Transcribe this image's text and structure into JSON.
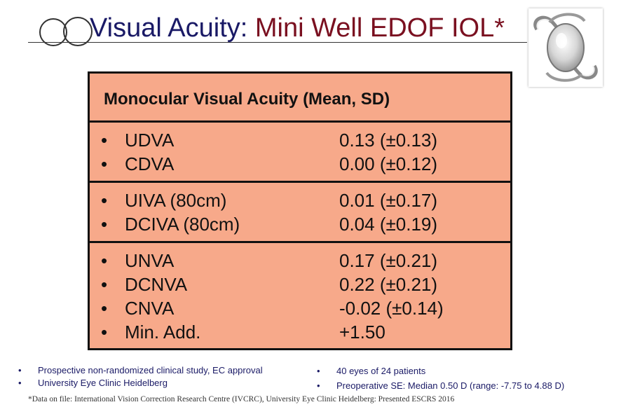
{
  "title": {
    "part1": "Visual Acuity: ",
    "part2": "Mini Well EDOF IOL*"
  },
  "table": {
    "header": "Monocular Visual Acuity (Mean, SD)",
    "bullet": "•",
    "sections": [
      [
        {
          "label": "UDVA",
          "value": "0.13 (±0.13)"
        },
        {
          "label": "CDVA",
          "value": "0.00 (±0.12)"
        }
      ],
      [
        {
          "label": "UIVA (80cm)",
          "value": "0.01 (±0.17)"
        },
        {
          "label": "DCIVA (80cm)",
          "value": "0.04 (±0.19)"
        }
      ],
      [
        {
          "label": "UNVA",
          "value": "0.17 (±0.21)"
        },
        {
          "label": "DCNVA",
          "value": "0.22 (±0.21)"
        },
        {
          "label": "CNVA",
          "value": "-0.02 (±0.14)"
        },
        {
          "label": "Min. Add.",
          "value": "+1.50"
        }
      ]
    ]
  },
  "notes": {
    "left": [
      "Prospective non-randomized clinical study, EC approval",
      "University Eye Clinic Heidelberg"
    ],
    "right": [
      "40 eyes of 24 patients",
      "Preoperative SE: Median 0.50 D (range: -7.75 to 4.88 D)"
    ]
  },
  "footnote": "*Data on file: International Vision Correction Research Centre (IVCRC), University Eye Clinic Heidelberg: Presented ESCRS 2016"
}
